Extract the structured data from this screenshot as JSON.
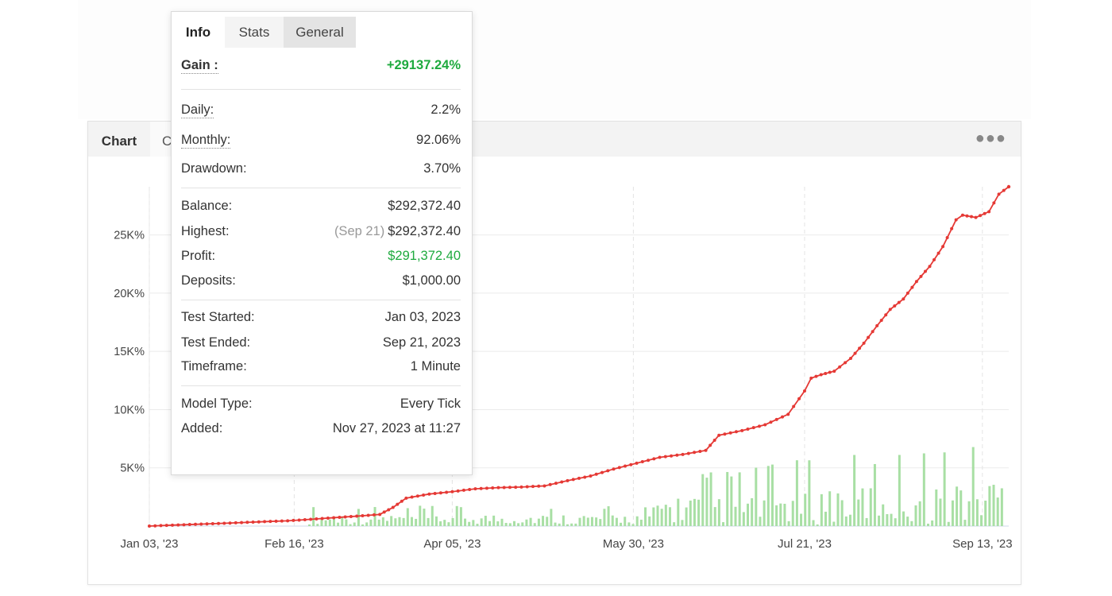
{
  "chart_panel": {
    "tab_chart": "Chart",
    "tab_partial": "C",
    "more_icon": "more-dots-icon"
  },
  "popup": {
    "tabs": [
      "Info",
      "Stats",
      "General"
    ],
    "gain": {
      "label": "Gain :",
      "value": "+29137.24%"
    },
    "daily": {
      "label": "Daily:",
      "value": "2.2%"
    },
    "monthly": {
      "label": "Monthly:",
      "value": "92.06%"
    },
    "drawdown": {
      "label": "Drawdown:",
      "value": "3.70%"
    },
    "balance": {
      "label": "Balance:",
      "value": "$292,372.40"
    },
    "highest": {
      "label": "Highest:",
      "note": "(Sep 21)",
      "value": "$292,372.40"
    },
    "profit": {
      "label": "Profit:",
      "value": "$291,372.40"
    },
    "deposits": {
      "label": "Deposits:",
      "value": "$1,000.00"
    },
    "test_started": {
      "label": "Test Started:",
      "value": "Jan 03, 2023"
    },
    "test_ended": {
      "label": "Test Ended:",
      "value": "Sep 21, 2023"
    },
    "timeframe": {
      "label": "Timeframe:",
      "value": "1 Minute"
    },
    "model_type": {
      "label": "Model Type:",
      "value": "Every Tick"
    },
    "added": {
      "label": "Added:",
      "value": "Nov 27, 2023 at 11:27"
    }
  },
  "colors": {
    "line": "#e53935",
    "bars": "#a8dfa4",
    "green_text": "#1eaa3e"
  },
  "chart_data": {
    "type": "line",
    "x_tick_labels": [
      "Jan 03, '23",
      "Feb 16, '23",
      "Apr 05, '23",
      "May 30, '23",
      "Jul 21, '23",
      "Sep 13, '23"
    ],
    "y_tick_labels": [
      "5K%",
      "10K%",
      "15K%",
      "20K%",
      "25K%"
    ],
    "ylim": [
      0,
      29137
    ],
    "grid": true,
    "series": [
      {
        "type": "line",
        "x": [
          "2023-01-03",
          "2023-01-10",
          "2023-01-17",
          "2023-01-24",
          "2023-01-31",
          "2023-02-07",
          "2023-02-14",
          "2023-02-21",
          "2023-02-28",
          "2023-03-07",
          "2023-03-14",
          "2023-03-18",
          "2023-03-22",
          "2023-03-29",
          "2023-04-05",
          "2023-04-12",
          "2023-04-19",
          "2023-04-26",
          "2023-05-03",
          "2023-05-10",
          "2023-05-17",
          "2023-05-24",
          "2023-05-31",
          "2023-06-07",
          "2023-06-14",
          "2023-06-21",
          "2023-06-25",
          "2023-07-02",
          "2023-07-09",
          "2023-07-16",
          "2023-07-21",
          "2023-07-23",
          "2023-07-26",
          "2023-07-30",
          "2023-08-04",
          "2023-08-08",
          "2023-08-12",
          "2023-08-16",
          "2023-08-20",
          "2023-08-24",
          "2023-08-28",
          "2023-09-01",
          "2023-09-05",
          "2023-09-07",
          "2023-09-11",
          "2023-09-15",
          "2023-09-18",
          "2023-09-21"
        ],
        "y": [
          0,
          80,
          150,
          220,
          300,
          380,
          450,
          580,
          720,
          850,
          1000,
          1600,
          2400,
          2750,
          2950,
          3200,
          3300,
          3350,
          3450,
          3900,
          4300,
          4900,
          5400,
          5900,
          6150,
          6500,
          7800,
          8200,
          8700,
          9600,
          11600,
          12700,
          13000,
          13300,
          14400,
          15700,
          17200,
          18600,
          19500,
          21000,
          22300,
          24000,
          26300,
          26700,
          26500,
          27000,
          28500,
          29137
        ]
      }
    ]
  }
}
